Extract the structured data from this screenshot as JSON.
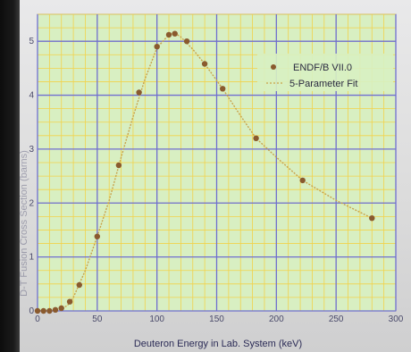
{
  "chart_data": {
    "type": "scatter",
    "title": "",
    "xlabel": "Deuteron Energy in Lab. System (keV)",
    "ylabel": "D-T Fusion Cross Section (barns)",
    "xlim": [
      0,
      300
    ],
    "ylim": [
      0,
      5.5
    ],
    "xticks": [
      "0",
      "50",
      "100",
      "150",
      "200",
      "250",
      "300"
    ],
    "yticks": [
      "0",
      "1",
      "2",
      "3",
      "4",
      "5"
    ],
    "grid": true,
    "legend_position": "top-right",
    "colors": {
      "plot_bg": "#d8efc2",
      "grid_major": "#6f6fd0",
      "grid_minor": "#f2d24a",
      "points": "#8a5a2e",
      "fit_line": "#c9a24a"
    },
    "series": [
      {
        "name": "ENDF/B VII.0",
        "kind": "points",
        "x": [
          0,
          5,
          10,
          15,
          20,
          27,
          35,
          50,
          68,
          85,
          100,
          110,
          115,
          125,
          140,
          155,
          183,
          222,
          280
        ],
        "y": [
          0.0,
          0.0,
          0.0,
          0.02,
          0.05,
          0.17,
          0.48,
          1.38,
          2.7,
          4.05,
          4.9,
          5.12,
          5.14,
          5.0,
          4.58,
          4.12,
          3.2,
          2.42,
          1.72
        ]
      },
      {
        "name": "5-Parameter Fit",
        "kind": "line",
        "x": [
          0,
          10,
          20,
          25,
          30,
          40,
          50,
          60,
          70,
          80,
          90,
          100,
          110,
          115,
          120,
          130,
          140,
          155,
          170,
          183,
          200,
          222,
          250,
          280
        ],
        "y": [
          0.0,
          0.0,
          0.04,
          0.1,
          0.25,
          0.75,
          1.38,
          2.05,
          2.85,
          3.6,
          4.3,
          4.88,
          5.12,
          5.15,
          5.08,
          4.85,
          4.58,
          4.12,
          3.62,
          3.2,
          2.85,
          2.42,
          2.05,
          1.72
        ]
      }
    ]
  }
}
